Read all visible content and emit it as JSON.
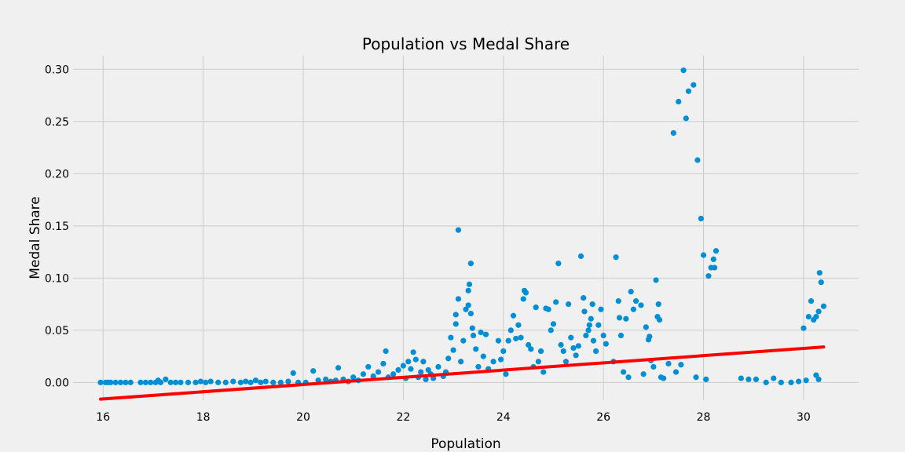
{
  "chart_data": {
    "type": "scatter",
    "title": "Population vs Medal Share",
    "xlabel": "Population",
    "ylabel": "Medal Share",
    "xlim": [
      15.4,
      31.1
    ],
    "ylim": [
      -0.017,
      0.313
    ],
    "xticks": [
      "16",
      "18",
      "20",
      "22",
      "24",
      "26",
      "28",
      "30"
    ],
    "yticks": [
      "0.00",
      "0.05",
      "0.10",
      "0.15",
      "0.20",
      "0.25",
      "0.30"
    ],
    "grid": true,
    "colors": {
      "points": "#008fd5",
      "trend": "#ff0000",
      "background": "#f0f0f0",
      "grid": "#cbcbcb"
    },
    "trend_line": {
      "x": [
        15.95,
        30.4
      ],
      "y": [
        -0.016,
        0.034
      ]
    },
    "series": [
      {
        "points": [
          [
            15.95,
            0
          ],
          [
            16.05,
            0
          ],
          [
            16.1,
            0
          ],
          [
            16.15,
            0
          ],
          [
            16.25,
            0
          ],
          [
            16.35,
            0
          ],
          [
            16.45,
            0
          ],
          [
            16.55,
            0
          ],
          [
            16.75,
            0
          ],
          [
            16.85,
            0
          ],
          [
            16.95,
            0
          ],
          [
            17.05,
            0
          ],
          [
            17.1,
            0.002
          ],
          [
            17.15,
            0
          ],
          [
            17.25,
            0.003
          ],
          [
            17.35,
            0
          ],
          [
            17.45,
            0
          ],
          [
            17.55,
            0
          ],
          [
            17.7,
            0
          ],
          [
            17.85,
            0
          ],
          [
            17.95,
            0.001
          ],
          [
            18.05,
            0
          ],
          [
            18.15,
            0.001
          ],
          [
            18.3,
            0
          ],
          [
            18.45,
            0
          ],
          [
            18.6,
            0.001
          ],
          [
            18.75,
            0
          ],
          [
            18.85,
            0.001
          ],
          [
            18.95,
            0
          ],
          [
            19.05,
            0.002
          ],
          [
            19.15,
            0
          ],
          [
            19.25,
            0.001
          ],
          [
            19.4,
            0
          ],
          [
            19.55,
            0
          ],
          [
            19.7,
            0.001
          ],
          [
            19.8,
            0.009
          ],
          [
            19.9,
            0
          ],
          [
            20.05,
            0
          ],
          [
            20.2,
            0.011
          ],
          [
            20.3,
            0.002
          ],
          [
            20.45,
            0.003
          ],
          [
            20.55,
            0.001
          ],
          [
            20.65,
            0.002
          ],
          [
            20.7,
            0.014
          ],
          [
            20.8,
            0.003
          ],
          [
            20.9,
            0.001
          ],
          [
            21.0,
            0.005
          ],
          [
            21.1,
            0.002
          ],
          [
            21.2,
            0.008
          ],
          [
            21.3,
            0.015
          ],
          [
            21.4,
            0.006
          ],
          [
            21.5,
            0.01
          ],
          [
            21.6,
            0.018
          ],
          [
            21.65,
            0.03
          ],
          [
            21.7,
            0.005
          ],
          [
            21.8,
            0.008
          ],
          [
            21.9,
            0.012
          ],
          [
            22.0,
            0.016
          ],
          [
            22.05,
            0.004
          ],
          [
            22.1,
            0.02
          ],
          [
            22.15,
            0.013
          ],
          [
            22.2,
            0.029
          ],
          [
            22.25,
            0.022
          ],
          [
            22.3,
            0.005
          ],
          [
            22.35,
            0.01
          ],
          [
            22.4,
            0.02
          ],
          [
            22.45,
            0.003
          ],
          [
            22.5,
            0.012
          ],
          [
            22.55,
            0.008
          ],
          [
            22.6,
            0.004
          ],
          [
            22.7,
            0.015
          ],
          [
            22.8,
            0.006
          ],
          [
            22.85,
            0.01
          ],
          [
            22.9,
            0.023
          ],
          [
            22.95,
            0.043
          ],
          [
            23.0,
            0.031
          ],
          [
            23.05,
            0.056
          ],
          [
            23.05,
            0.065
          ],
          [
            23.1,
            0.146
          ],
          [
            23.1,
            0.08
          ],
          [
            23.15,
            0.02
          ],
          [
            23.2,
            0.04
          ],
          [
            23.25,
            0.07
          ],
          [
            23.3,
            0.074
          ],
          [
            23.3,
            0.088
          ],
          [
            23.32,
            0.094
          ],
          [
            23.35,
            0.114
          ],
          [
            23.35,
            0.066
          ],
          [
            23.38,
            0.052
          ],
          [
            23.4,
            0.045
          ],
          [
            23.45,
            0.032
          ],
          [
            23.5,
            0.015
          ],
          [
            23.55,
            0.048
          ],
          [
            23.6,
            0.025
          ],
          [
            23.65,
            0.046
          ],
          [
            23.7,
            0.013
          ],
          [
            23.8,
            0.02
          ],
          [
            23.9,
            0.04
          ],
          [
            23.95,
            0.022
          ],
          [
            24.0,
            0.03
          ],
          [
            24.05,
            0.008
          ],
          [
            24.1,
            0.04
          ],
          [
            24.15,
            0.05
          ],
          [
            24.2,
            0.064
          ],
          [
            24.25,
            0.042
          ],
          [
            24.3,
            0.055
          ],
          [
            24.35,
            0.043
          ],
          [
            24.4,
            0.08
          ],
          [
            24.42,
            0.088
          ],
          [
            24.45,
            0.086
          ],
          [
            24.5,
            0.036
          ],
          [
            24.55,
            0.032
          ],
          [
            24.6,
            0.015
          ],
          [
            24.65,
            0.072
          ],
          [
            24.7,
            0.02
          ],
          [
            24.75,
            0.03
          ],
          [
            24.8,
            0.01
          ],
          [
            24.85,
            0.071
          ],
          [
            24.9,
            0.07
          ],
          [
            24.95,
            0.05
          ],
          [
            25.0,
            0.056
          ],
          [
            25.05,
            0.077
          ],
          [
            25.1,
            0.114
          ],
          [
            25.15,
            0.036
          ],
          [
            25.2,
            0.03
          ],
          [
            25.25,
            0.02
          ],
          [
            25.3,
            0.075
          ],
          [
            25.35,
            0.043
          ],
          [
            25.4,
            0.033
          ],
          [
            25.45,
            0.026
          ],
          [
            25.5,
            0.035
          ],
          [
            25.55,
            0.121
          ],
          [
            25.6,
            0.081
          ],
          [
            25.62,
            0.068
          ],
          [
            25.65,
            0.045
          ],
          [
            25.7,
            0.05
          ],
          [
            25.72,
            0.055
          ],
          [
            25.75,
            0.061
          ],
          [
            25.78,
            0.075
          ],
          [
            25.8,
            0.04
          ],
          [
            25.85,
            0.03
          ],
          [
            25.9,
            0.055
          ],
          [
            25.95,
            0.07
          ],
          [
            26.0,
            0.045
          ],
          [
            26.05,
            0.037
          ],
          [
            26.2,
            0.02
          ],
          [
            26.25,
            0.12
          ],
          [
            26.3,
            0.078
          ],
          [
            26.32,
            0.062
          ],
          [
            26.35,
            0.045
          ],
          [
            26.4,
            0.01
          ],
          [
            26.45,
            0.061
          ],
          [
            26.5,
            0.005
          ],
          [
            26.55,
            0.087
          ],
          [
            26.6,
            0.07
          ],
          [
            26.65,
            0.078
          ],
          [
            26.75,
            0.074
          ],
          [
            26.8,
            0.008
          ],
          [
            26.85,
            0.053
          ],
          [
            26.9,
            0.041
          ],
          [
            26.92,
            0.044
          ],
          [
            26.95,
            0.021
          ],
          [
            27.0,
            0.015
          ],
          [
            27.05,
            0.098
          ],
          [
            27.08,
            0.063
          ],
          [
            27.1,
            0.075
          ],
          [
            27.12,
            0.06
          ],
          [
            27.15,
            0.005
          ],
          [
            27.2,
            0.004
          ],
          [
            27.3,
            0.018
          ],
          [
            27.4,
            0.239
          ],
          [
            27.45,
            0.01
          ],
          [
            27.5,
            0.269
          ],
          [
            27.55,
            0.017
          ],
          [
            27.6,
            0.299
          ],
          [
            27.65,
            0.253
          ],
          [
            27.7,
            0.279
          ],
          [
            27.8,
            0.285
          ],
          [
            27.85,
            0.005
          ],
          [
            27.88,
            0.213
          ],
          [
            27.95,
            0.157
          ],
          [
            28.0,
            0.122
          ],
          [
            28.05,
            0.003
          ],
          [
            28.1,
            0.102
          ],
          [
            28.15,
            0.11
          ],
          [
            28.2,
            0.118
          ],
          [
            28.22,
            0.11
          ],
          [
            28.25,
            0.126
          ],
          [
            28.75,
            0.004
          ],
          [
            28.9,
            0.003
          ],
          [
            29.05,
            0.003
          ],
          [
            29.25,
            0
          ],
          [
            29.4,
            0.004
          ],
          [
            29.55,
            0
          ],
          [
            29.75,
            0
          ],
          [
            29.9,
            0.001
          ],
          [
            30.0,
            0.052
          ],
          [
            30.05,
            0.002
          ],
          [
            30.1,
            0.063
          ],
          [
            30.15,
            0.078
          ],
          [
            30.2,
            0.06
          ],
          [
            30.25,
            0.063
          ],
          [
            30.3,
            0.068
          ],
          [
            30.32,
            0.105
          ],
          [
            30.35,
            0.096
          ],
          [
            30.4,
            0.073
          ],
          [
            30.3,
            0.003
          ],
          [
            30.25,
            0.007
          ]
        ]
      }
    ]
  }
}
